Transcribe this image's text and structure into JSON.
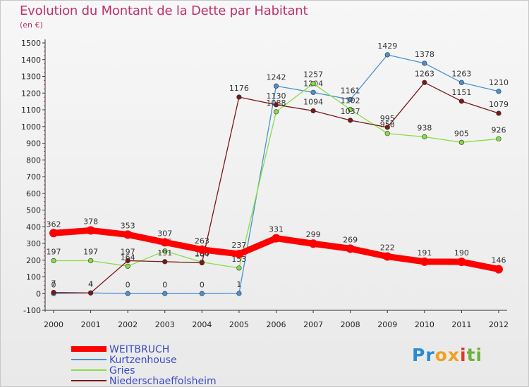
{
  "title": "Evolution du Montant de la Dette par Habitant",
  "unit_label": "(en €)",
  "brand": {
    "text": "Proxiti",
    "letters": [
      {
        "ch": "P",
        "color": "#2a8ad4"
      },
      {
        "ch": "r",
        "color": "#2a8ad4"
      },
      {
        "ch": "o",
        "color": "#f0a020"
      },
      {
        "ch": "x",
        "color": "#f0a020"
      },
      {
        "ch": "i",
        "color": "#e03a2a"
      },
      {
        "ch": "t",
        "color": "#6ab43a"
      },
      {
        "ch": "i",
        "color": "#6ab43a"
      }
    ]
  },
  "chart_data": {
    "type": "line",
    "title": "Evolution du Montant de la Dette par Habitant",
    "ylabel": "(en €)",
    "xlabel": "",
    "ylim": [
      -100,
      1500
    ],
    "ytick_step": 100,
    "grid": false,
    "legend_position": "bottom-left",
    "x": [
      2000,
      2001,
      2002,
      2003,
      2004,
      2005,
      2006,
      2007,
      2008,
      2009,
      2010,
      2011,
      2012
    ],
    "series": [
      {
        "name": "WEITBRUCH",
        "color": "#ff0000",
        "emphasis": true,
        "values": [
          362,
          378,
          353,
          307,
          263,
          237,
          331,
          299,
          269,
          222,
          191,
          190,
          146
        ]
      },
      {
        "name": "Kurtzenhouse",
        "color": "#4a90d0",
        "emphasis": false,
        "values": [
          0,
          4,
          0,
          0,
          0,
          1,
          1242,
          1204,
          1161,
          1429,
          1378,
          1263,
          1210
        ]
      },
      {
        "name": "Gries",
        "color": "#88dd44",
        "emphasis": false,
        "values": [
          197,
          197,
          164,
          255,
          188,
          153,
          1088,
          1257,
          1102,
          958,
          938,
          905,
          926
        ]
      },
      {
        "name": "Niederschaeffolsheim",
        "color": "#7a1818",
        "emphasis": false,
        "values": [
          7,
          4,
          197,
          191,
          184,
          1176,
          1130,
          1094,
          1037,
          995,
          1263,
          1151,
          1079
        ]
      }
    ]
  }
}
